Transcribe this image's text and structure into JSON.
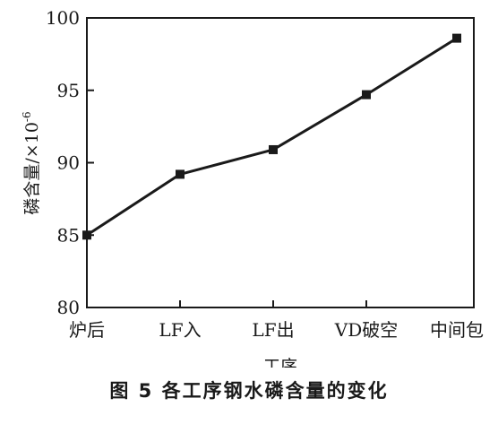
{
  "chart_data": {
    "type": "line",
    "categories": [
      "炉后",
      "LF入",
      "LF出",
      "VD破空",
      "中间包"
    ],
    "series": [
      {
        "values": [
          85,
          89.2,
          90.9,
          94.7,
          98.6
        ]
      }
    ],
    "xlabel": "工序",
    "ylabel": "磷含量/×10⁻⁶",
    "ylabel_main": "磷含量/×10",
    "ylabel_exp": "-6",
    "yticks": [
      80,
      85,
      90,
      95,
      100
    ],
    "ylim": [
      80,
      100
    ],
    "grid": false,
    "line_color": "#1a1a1a"
  },
  "caption": "图 5  各工序钢水磷含量的变化"
}
